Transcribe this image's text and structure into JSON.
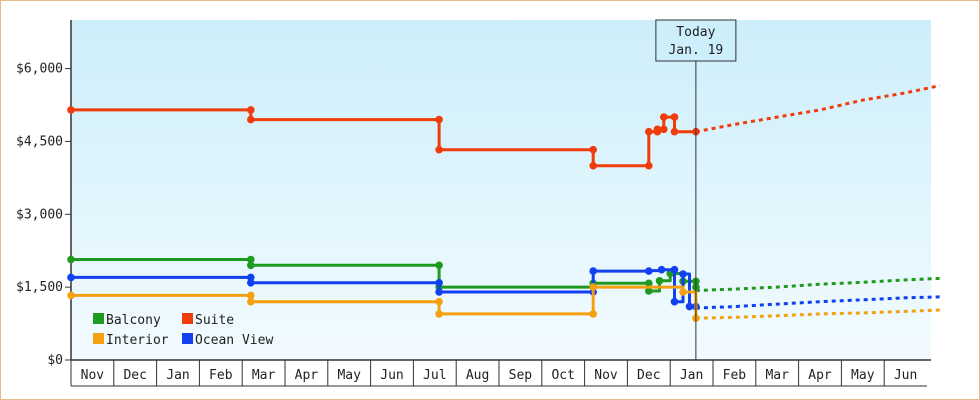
{
  "chart_data": {
    "type": "line",
    "x_unit": "month",
    "y_ticks": [
      {
        "value": 0,
        "label": "$0"
      },
      {
        "value": 1500,
        "label": "$1,500"
      },
      {
        "value": 3000,
        "label": "$3,000"
      },
      {
        "value": 4500,
        "label": "$4,500"
      },
      {
        "value": 6000,
        "label": "$6,000"
      }
    ],
    "ylim": [
      0,
      7000
    ],
    "xlim": [
      "Oct 31",
      "Jul 16"
    ],
    "month_labels": [
      "Nov",
      "Dec",
      "Jan",
      "Feb",
      "Mar",
      "Apr",
      "May",
      "Jun",
      "Jul",
      "Aug",
      "Sep",
      "Oct",
      "Nov",
      "Dec",
      "Jan",
      "Feb",
      "Mar",
      "Apr",
      "May",
      "Jun"
    ],
    "grid": false,
    "legend_placement": "bottom-left",
    "today": {
      "label_line1": "Today",
      "label_line2": "Jan. 19",
      "x": 14.6
    },
    "series": [
      {
        "name": "Suite",
        "color": "#f03c0a",
        "style": "step",
        "points": [
          [
            0,
            5150
          ],
          [
            4.2,
            5150
          ],
          [
            4.2,
            4950
          ],
          [
            8.6,
            4950
          ],
          [
            8.6,
            4330
          ],
          [
            12.2,
            4330
          ],
          [
            12.2,
            4000
          ],
          [
            13.5,
            4000
          ],
          [
            13.5,
            4700
          ],
          [
            13.7,
            4700
          ],
          [
            13.7,
            4750
          ],
          [
            13.85,
            4750
          ],
          [
            13.85,
            5000
          ],
          [
            14.1,
            5000
          ],
          [
            14.1,
            4700
          ],
          [
            14.6,
            4700
          ]
        ],
        "markers": [
          [
            0,
            5150
          ],
          [
            4.2,
            5150
          ],
          [
            4.2,
            4950
          ],
          [
            8.6,
            4950
          ],
          [
            8.6,
            4330
          ],
          [
            12.2,
            4330
          ],
          [
            12.2,
            4000
          ],
          [
            13.5,
            4000
          ],
          [
            13.5,
            4700
          ],
          [
            13.7,
            4700
          ],
          [
            13.7,
            4750
          ],
          [
            13.85,
            4750
          ],
          [
            13.85,
            5000
          ],
          [
            14.1,
            5000
          ],
          [
            14.1,
            4700
          ],
          [
            14.6,
            4700
          ]
        ],
        "forecast": [
          [
            14.6,
            4700
          ],
          [
            15.5,
            4850
          ],
          [
            16.5,
            5000
          ],
          [
            17.5,
            5150
          ],
          [
            18.5,
            5350
          ],
          [
            19.5,
            5500
          ],
          [
            20.3,
            5650
          ]
        ]
      },
      {
        "name": "Balcony",
        "color": "#1e9a1e",
        "style": "step",
        "points": [
          [
            0,
            2070
          ],
          [
            4.2,
            2070
          ],
          [
            4.2,
            1950
          ],
          [
            8.6,
            1950
          ],
          [
            8.6,
            1500
          ],
          [
            12.2,
            1500
          ],
          [
            12.2,
            1580
          ],
          [
            13.5,
            1580
          ],
          [
            13.5,
            1420
          ],
          [
            13.75,
            1420
          ],
          [
            13.75,
            1630
          ],
          [
            14.0,
            1630
          ],
          [
            14.0,
            1780
          ],
          [
            14.3,
            1780
          ],
          [
            14.3,
            1620
          ],
          [
            14.6,
            1620
          ],
          [
            14.6,
            1500
          ]
        ],
        "markers": [
          [
            0,
            2070
          ],
          [
            4.2,
            2070
          ],
          [
            4.2,
            1950
          ],
          [
            8.6,
            1950
          ],
          [
            8.6,
            1500
          ],
          [
            12.2,
            1580
          ],
          [
            13.5,
            1580
          ],
          [
            13.5,
            1420
          ],
          [
            13.75,
            1630
          ],
          [
            14.0,
            1780
          ],
          [
            14.3,
            1620
          ],
          [
            14.6,
            1620
          ],
          [
            14.6,
            1500
          ]
        ],
        "forecast": [
          [
            14.6,
            1430
          ],
          [
            15.5,
            1460
          ],
          [
            16.5,
            1500
          ],
          [
            17.5,
            1560
          ],
          [
            18.5,
            1600
          ],
          [
            19.5,
            1650
          ],
          [
            20.3,
            1680
          ]
        ]
      },
      {
        "name": "Ocean View",
        "color": "#1040f0",
        "style": "step",
        "points": [
          [
            0,
            1700
          ],
          [
            4.2,
            1700
          ],
          [
            4.2,
            1590
          ],
          [
            8.6,
            1590
          ],
          [
            8.6,
            1400
          ],
          [
            12.2,
            1400
          ],
          [
            12.2,
            1830
          ],
          [
            13.5,
            1830
          ],
          [
            13.5,
            1840
          ],
          [
            13.8,
            1840
          ],
          [
            13.8,
            1860
          ],
          [
            14.1,
            1860
          ],
          [
            14.1,
            1200
          ],
          [
            14.3,
            1200
          ],
          [
            14.3,
            1770
          ],
          [
            14.45,
            1770
          ],
          [
            14.45,
            1100
          ],
          [
            14.6,
            1100
          ]
        ],
        "markers": [
          [
            0,
            1700
          ],
          [
            4.2,
            1700
          ],
          [
            4.2,
            1590
          ],
          [
            8.6,
            1590
          ],
          [
            8.6,
            1400
          ],
          [
            12.2,
            1400
          ],
          [
            12.2,
            1830
          ],
          [
            13.5,
            1830
          ],
          [
            13.8,
            1860
          ],
          [
            14.1,
            1860
          ],
          [
            14.1,
            1200
          ],
          [
            14.3,
            1770
          ],
          [
            14.45,
            1100
          ],
          [
            14.6,
            1100
          ]
        ],
        "forecast": [
          [
            14.6,
            1070
          ],
          [
            15.5,
            1100
          ],
          [
            16.5,
            1150
          ],
          [
            17.5,
            1200
          ],
          [
            18.5,
            1240
          ],
          [
            19.5,
            1280
          ],
          [
            20.3,
            1300
          ]
        ]
      },
      {
        "name": "Interior",
        "color": "#f5a00f",
        "style": "step",
        "points": [
          [
            0,
            1330
          ],
          [
            4.2,
            1330
          ],
          [
            4.2,
            1200
          ],
          [
            8.6,
            1200
          ],
          [
            8.6,
            950
          ],
          [
            12.2,
            950
          ],
          [
            12.2,
            1500
          ],
          [
            14.3,
            1500
          ],
          [
            14.3,
            1400
          ],
          [
            14.6,
            1400
          ],
          [
            14.6,
            860
          ]
        ],
        "markers": [
          [
            0,
            1330
          ],
          [
            4.2,
            1330
          ],
          [
            4.2,
            1200
          ],
          [
            8.6,
            1200
          ],
          [
            8.6,
            950
          ],
          [
            12.2,
            950
          ],
          [
            12.2,
            1500
          ],
          [
            14.3,
            1400
          ],
          [
            14.6,
            860
          ]
        ],
        "forecast": [
          [
            14.6,
            860
          ],
          [
            15.5,
            880
          ],
          [
            16.5,
            910
          ],
          [
            17.5,
            950
          ],
          [
            18.5,
            970
          ],
          [
            19.5,
            1000
          ],
          [
            20.3,
            1030
          ]
        ]
      }
    ],
    "legend": [
      {
        "name": "Balcony",
        "color": "#1e9a1e"
      },
      {
        "name": "Suite",
        "color": "#f03c0a"
      },
      {
        "name": "Interior",
        "color": "#f5a00f"
      },
      {
        "name": "Ocean View",
        "color": "#1040f0"
      }
    ]
  }
}
